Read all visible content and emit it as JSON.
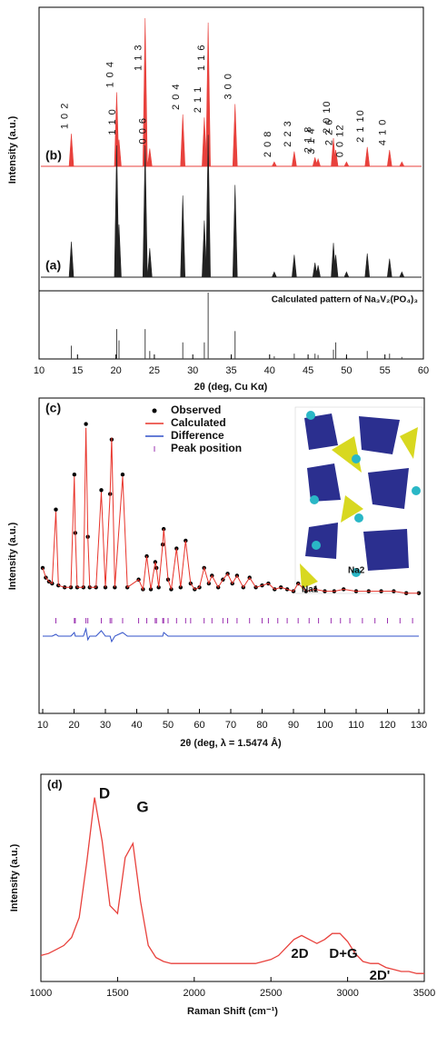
{
  "chart_data": [
    {
      "type": "xrd",
      "xlabel": "2θ (deg, Cu Kα)",
      "ylabel": "Intensity (a.u.)",
      "xlim": [
        10,
        60
      ],
      "xticks": [
        10,
        15,
        20,
        25,
        30,
        35,
        40,
        45,
        50,
        55,
        60
      ],
      "series": [
        {
          "name": "(b)",
          "color": "#e8413c",
          "x": [
            14.2,
            20.1,
            20.4,
            23.8,
            24.4,
            28.7,
            31.5,
            32,
            35.5,
            40.6,
            43.2,
            45.9,
            46.3,
            48.3,
            48.6,
            50,
            52.7,
            55.6,
            57.2
          ],
          "values": [
            22,
            50,
            18,
            100,
            12,
            35,
            33,
            97,
            42,
            3,
            10,
            6,
            5,
            19,
            11,
            3,
            13,
            11,
            3
          ],
          "labels": [
            "1 0 2",
            "1 0 4",
            "1 1 0",
            "1 1 3",
            "0 0 6",
            "2 0 4",
            "2 1 1",
            "1 1 6",
            "3 0 0",
            "2 0 8",
            "2 2 3",
            "2 1 8",
            "3 1 4",
            "2 0 10",
            "2 2 6",
            "0 0 12",
            "2 1 10",
            "4 1 0",
            null
          ]
        },
        {
          "name": "(a)",
          "color": "#222222",
          "x": [
            14.2,
            20.1,
            20.4,
            23.8,
            24.4,
            28.7,
            31.5,
            32,
            35.5,
            40.6,
            43.2,
            45.9,
            46.3,
            48.3,
            48.6,
            50,
            52.7,
            55.6,
            57.2
          ],
          "values": [
            27,
            100,
            40,
            100,
            22,
            62,
            43,
            108,
            70,
            4,
            17,
            11,
            9,
            26,
            17,
            4,
            18,
            14,
            4
          ]
        },
        {
          "name": "Calculated pattern of Na₃V₂(PO₄)₃",
          "color": "#444444",
          "x": [
            14.2,
            20.1,
            20.4,
            23.8,
            24.4,
            28.7,
            31.5,
            32,
            35.5,
            40.6,
            43.2,
            45.9,
            46.3,
            48.3,
            48.6,
            50,
            52.7,
            55.6,
            57.2
          ],
          "values": [
            20,
            45,
            28,
            45,
            12,
            25,
            25,
            100,
            42,
            4,
            8,
            8,
            6,
            14,
            25,
            4,
            12,
            8,
            3
          ]
        }
      ]
    },
    {
      "type": "refinement",
      "label": "(c)",
      "xlabel": "2θ (deg, λ = 1.5474 Å)",
      "ylabel": "Intensity (a.u.)",
      "xlim": [
        10,
        130
      ],
      "xticks": [
        10,
        20,
        30,
        40,
        50,
        60,
        70,
        80,
        90,
        100,
        110,
        120,
        130
      ],
      "ylim": [
        0,
        100
      ],
      "x": [
        10,
        11,
        12,
        13,
        14.2,
        15,
        17,
        19,
        20.1,
        20.4,
        21,
        23,
        23.8,
        24.4,
        25,
        27,
        28.7,
        30,
        31.5,
        32,
        33,
        35.5,
        37,
        40.6,
        42,
        43.2,
        44.5,
        45.9,
        46.3,
        47,
        48.3,
        48.6,
        50,
        51,
        52.7,
        54,
        55.6,
        57.2,
        58.5,
        60,
        61.5,
        63,
        64,
        66,
        67.5,
        69,
        70.5,
        72,
        74,
        76,
        78,
        80,
        82,
        84,
        86,
        88,
        90,
        91.5,
        94,
        97,
        100,
        103,
        106,
        110,
        114,
        118,
        122,
        126,
        130
      ],
      "series": [
        {
          "name": "Observed",
          "color": "#000000",
          "values": [
            22,
            17,
            15,
            14,
            52,
            13,
            12,
            12,
            70,
            40,
            12,
            12,
            96,
            38,
            12,
            12,
            62,
            12,
            60,
            88,
            12,
            70,
            12,
            16,
            11,
            28,
            11,
            25,
            22,
            12,
            34,
            42,
            16,
            11,
            32,
            12,
            36,
            14,
            11,
            12,
            22,
            14,
            18,
            12,
            16,
            19,
            14,
            18,
            12,
            17,
            12,
            13,
            14,
            11,
            12,
            11,
            10,
            14,
            10,
            11,
            10,
            10,
            11,
            10,
            10,
            10,
            10,
            9,
            9
          ]
        },
        {
          "name": "Calculated",
          "color": "#e8332a",
          "values": [
            22,
            17,
            15,
            14,
            51,
            13,
            12,
            12,
            69,
            40,
            12,
            12,
            94,
            38,
            12,
            12,
            61,
            12,
            60,
            89,
            12,
            69,
            12,
            16,
            11,
            28,
            11,
            25,
            22,
            12,
            34,
            42,
            16,
            11,
            32,
            12,
            36,
            14,
            11,
            12,
            22,
            14,
            18,
            12,
            16,
            19,
            14,
            18,
            12,
            17,
            12,
            13,
            14,
            11,
            12,
            11,
            10,
            14,
            10,
            11,
            10,
            10,
            11,
            10,
            10,
            10,
            10,
            9,
            9
          ]
        },
        {
          "name": "Difference",
          "color": "#3050c8",
          "values": [
            0,
            0,
            0,
            0,
            1,
            0,
            0,
            0,
            2,
            0,
            0,
            0,
            4,
            -2,
            0,
            0,
            3,
            0,
            0,
            -3,
            0,
            2,
            0,
            0,
            0,
            0,
            0,
            0,
            0,
            0,
            0,
            2,
            0,
            0,
            0,
            0,
            0,
            0,
            0,
            0,
            0,
            0,
            0,
            0,
            0,
            0,
            0,
            0,
            0,
            0,
            0,
            0,
            0,
            0,
            0,
            0,
            0,
            0,
            0,
            0,
            0,
            0,
            0,
            0,
            0,
            0,
            0,
            0,
            0
          ]
        }
      ],
      "peak_positions": {
        "name": "Peak position",
        "color": "#9b30b0",
        "x": [
          14.2,
          20.1,
          20.4,
          23.8,
          24.4,
          28.7,
          31.5,
          32,
          35.5,
          40.6,
          43.2,
          45.9,
          46.3,
          48.3,
          48.6,
          50,
          52.7,
          55.6,
          57.2,
          61.5,
          64,
          67.5,
          69,
          72,
          76,
          80,
          82,
          85,
          88,
          91.5,
          95,
          98,
          102,
          105,
          108,
          112,
          116,
          120,
          124,
          128
        ]
      },
      "inset_labels": [
        "Na1",
        "Na2"
      ]
    },
    {
      "type": "line",
      "label": "(d)",
      "xlabel": "Raman Shift (cm⁻¹)",
      "ylabel": "Intensity (a.u.)",
      "xlim": [
        1000,
        3500
      ],
      "xticks": [
        1000,
        1500,
        2000,
        2500,
        3000,
        3500
      ],
      "ylim": [
        0,
        100
      ],
      "color": "#e8413c",
      "x": [
        1000,
        1050,
        1100,
        1150,
        1200,
        1250,
        1300,
        1350,
        1400,
        1450,
        1500,
        1550,
        1600,
        1650,
        1700,
        1750,
        1800,
        1850,
        1900,
        1950,
        2000,
        2050,
        2100,
        2150,
        2200,
        2250,
        2300,
        2350,
        2400,
        2450,
        2500,
        2550,
        2600,
        2650,
        2700,
        2750,
        2800,
        2850,
        2900,
        2950,
        3000,
        3050,
        3100,
        3150,
        3200,
        3250,
        3300,
        3350,
        3400,
        3450,
        3500
      ],
      "values": [
        13,
        14,
        16,
        18,
        22,
        32,
        60,
        92,
        70,
        38,
        34,
        62,
        69,
        40,
        18,
        12,
        10,
        9,
        9,
        9,
        9,
        9,
        9,
        9,
        9,
        9,
        9,
        9,
        9,
        10,
        11,
        13,
        17,
        21,
        23,
        21,
        19,
        21,
        24,
        24,
        20,
        14,
        10,
        9,
        9,
        7,
        6,
        5,
        5,
        4,
        4
      ],
      "annotations": [
        "D",
        "G",
        "2D",
        "D+G",
        "2D'"
      ]
    }
  ]
}
